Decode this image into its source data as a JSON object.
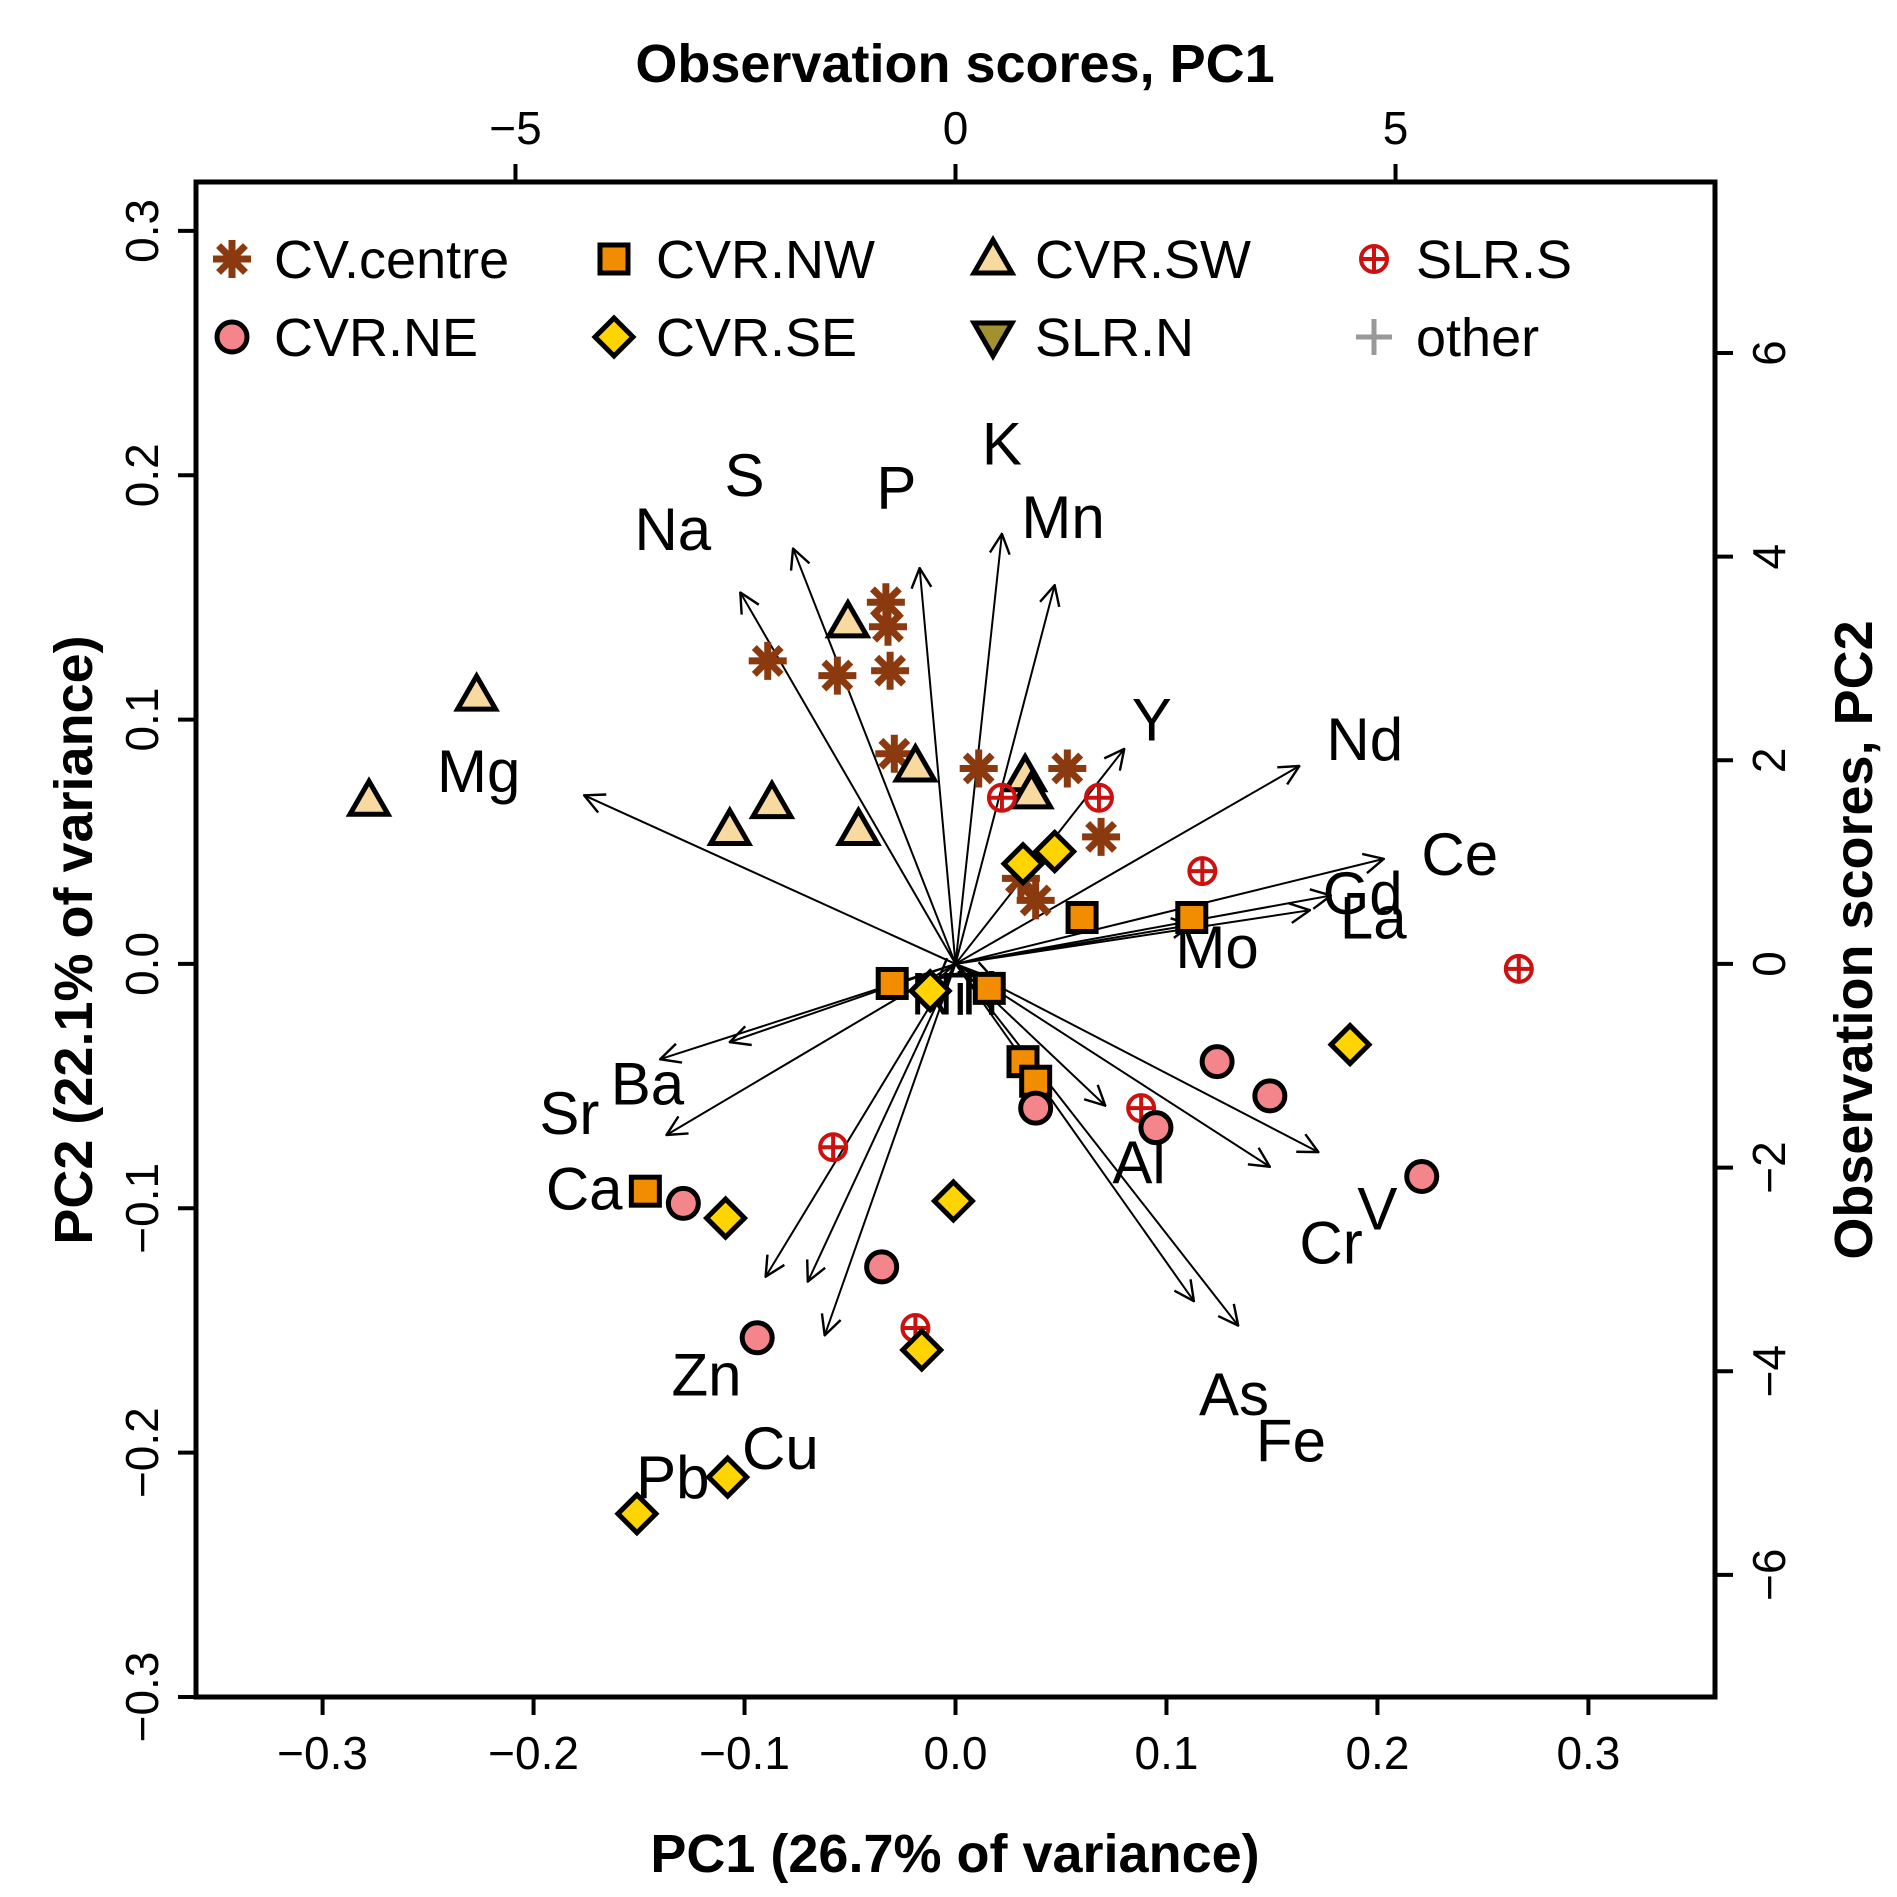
{
  "colors": {
    "cv_centre": "#8B3A0F",
    "cvr_nw": "#F28C00",
    "cvr_sw": "#F8D9A0",
    "slr_s": "#CC1111",
    "cvr_ne": "#F4858A",
    "cvr_se": "#FFD400",
    "slr_n": "#A39130",
    "other": "#999999",
    "axis": "#000000"
  },
  "chart_data": {
    "type": "scatter",
    "subtype": "pca-biplot",
    "titles": {
      "bottom": "PC1 (26.7% of variance)",
      "left": "PC2 (22.1% of variance)",
      "top": "Observation scores, PC1",
      "right": "Observation scores, PC2"
    },
    "axes": {
      "bottom": {
        "lim": [
          -0.36,
          0.36
        ],
        "ticks": [
          -0.3,
          -0.2,
          -0.1,
          0.0,
          0.1,
          0.2,
          0.3
        ],
        "tick_labels": [
          "−0.3",
          "−0.2",
          "−0.1",
          "0.0",
          "0.1",
          "0.2",
          "0.3"
        ]
      },
      "left": {
        "lim": [
          -0.3,
          0.32
        ],
        "ticks": [
          -0.3,
          -0.2,
          -0.1,
          0.0,
          0.1,
          0.2,
          0.3
        ],
        "tick_labels": [
          "−0.3",
          "−0.2",
          "−0.1",
          "0.0",
          "0.1",
          "0.2",
          "0.3"
        ]
      },
      "top": {
        "lim": [
          -8.63,
          8.63
        ],
        "ticks": [
          -5,
          0,
          5
        ],
        "tick_labels": [
          "−5",
          "0",
          "5"
        ]
      },
      "right": {
        "lim": [
          -7.2,
          7.68
        ],
        "ticks": [
          -6,
          -4,
          -2,
          0,
          2,
          4,
          6
        ],
        "tick_labels": [
          "−6",
          "−4",
          "−2",
          "0",
          "2",
          "4",
          "6"
        ]
      }
    },
    "legend": {
      "position": "top-left",
      "entries": [
        {
          "key": "cv_centre",
          "label": "CV.centre",
          "marker": "asterisk"
        },
        {
          "key": "cvr_nw",
          "label": "CVR.NW",
          "marker": "square"
        },
        {
          "key": "cvr_sw",
          "label": "CVR.SW",
          "marker": "triangle-up"
        },
        {
          "key": "slr_s",
          "label": "SLR.S",
          "marker": "circle-plus"
        },
        {
          "key": "cvr_ne",
          "label": "CVR.NE",
          "marker": "circle"
        },
        {
          "key": "cvr_se",
          "label": "CVR.SE",
          "marker": "diamond"
        },
        {
          "key": "slr_n",
          "label": "SLR.N",
          "marker": "triangle-down"
        },
        {
          "key": "other",
          "label": "other",
          "marker": "plus"
        }
      ]
    },
    "loadings": [
      {
        "name": "S",
        "x": -0.077,
        "y": 0.17,
        "label_x": -0.1,
        "label_y": 0.2
      },
      {
        "name": "Na",
        "x": -0.102,
        "y": 0.152,
        "label_x": -0.134,
        "label_y": 0.178
      },
      {
        "name": "P",
        "x": -0.017,
        "y": 0.162,
        "label_x": -0.028,
        "label_y": 0.195
      },
      {
        "name": "K",
        "x": 0.022,
        "y": 0.176,
        "label_x": 0.022,
        "label_y": 0.213
      },
      {
        "name": "Mn",
        "x": 0.047,
        "y": 0.155,
        "label_x": 0.051,
        "label_y": 0.183
      },
      {
        "name": "Y",
        "x": 0.08,
        "y": 0.088,
        "label_x": 0.093,
        "label_y": 0.1
      },
      {
        "name": "Nd",
        "x": 0.163,
        "y": 0.081,
        "label_x": 0.194,
        "label_y": 0.092
      },
      {
        "name": "Ce",
        "x": 0.203,
        "y": 0.043,
        "label_x": 0.239,
        "label_y": 0.045
      },
      {
        "name": "Gd",
        "x": 0.178,
        "y": 0.028,
        "label_x": 0.193,
        "label_y": 0.029
      },
      {
        "name": "La",
        "x": 0.168,
        "y": 0.022,
        "label_x": 0.198,
        "label_y": 0.019
      },
      {
        "name": "Mo",
        "x": 0.112,
        "y": 0.016,
        "label_x": 0.124,
        "label_y": 0.007
      },
      {
        "name": "Mg",
        "x": -0.176,
        "y": 0.069,
        "label_x": -0.226,
        "label_y": 0.079
      },
      {
        "name": "Ba",
        "x": -0.107,
        "y": -0.032,
        "label_x": -0.146,
        "label_y": -0.049
      },
      {
        "name": "Sr",
        "x": -0.14,
        "y": -0.039,
        "label_x": -0.183,
        "label_y": -0.061
      },
      {
        "name": "Ni",
        "x": -0.008,
        "y": -0.006,
        "label_x": -0.008,
        "label_y": -0.012
      },
      {
        "name": "Ti",
        "x": 0.018,
        "y": -0.006,
        "label_x": 0.009,
        "label_y": -0.012
      },
      {
        "name": "Al",
        "x": 0.071,
        "y": -0.058,
        "label_x": 0.087,
        "label_y": -0.081
      },
      {
        "name": "Cr",
        "x": 0.149,
        "y": -0.083,
        "label_x": 0.178,
        "label_y": -0.114
      },
      {
        "name": "V",
        "x": 0.172,
        "y": -0.077,
        "label_x": 0.2,
        "label_y": -0.1
      },
      {
        "name": "As",
        "x": 0.113,
        "y": -0.138,
        "label_x": 0.132,
        "label_y": -0.176
      },
      {
        "name": "Fe",
        "x": 0.134,
        "y": -0.148,
        "label_x": 0.159,
        "label_y": -0.195
      },
      {
        "name": "Ca",
        "x": -0.137,
        "y": -0.07,
        "label_x": -0.176,
        "label_y": -0.092
      },
      {
        "name": "Zn",
        "x": -0.09,
        "y": -0.128,
        "label_x": -0.118,
        "label_y": -0.168
      },
      {
        "name": "Cu",
        "x": -0.062,
        "y": -0.152,
        "label_x": -0.083,
        "label_y": -0.198
      },
      {
        "name": "Pb",
        "x": -0.07,
        "y": -0.13,
        "label_x": -0.134,
        "label_y": -0.21
      }
    ],
    "series": [
      {
        "key": "cv_centre",
        "name": "CV.centre",
        "points": [
          [
            -0.089,
            0.124
          ],
          [
            -0.056,
            0.118
          ],
          [
            -0.033,
            0.148
          ],
          [
            -0.032,
            0.138
          ],
          [
            -0.031,
            0.12
          ],
          [
            -0.029,
            0.086
          ],
          [
            0.011,
            0.08
          ],
          [
            0.053,
            0.08
          ],
          [
            0.069,
            0.052
          ],
          [
            0.031,
            0.035
          ],
          [
            0.038,
            0.026
          ]
        ]
      },
      {
        "key": "cvr_sw",
        "name": "CVR.SW",
        "points": [
          [
            -0.278,
            0.067
          ],
          [
            -0.227,
            0.11
          ],
          [
            -0.107,
            0.055
          ],
          [
            -0.087,
            0.066
          ],
          [
            -0.051,
            0.14
          ],
          [
            -0.046,
            0.055
          ],
          [
            -0.019,
            0.081
          ],
          [
            0.033,
            0.077
          ],
          [
            0.036,
            0.07
          ]
        ]
      },
      {
        "key": "slr_s",
        "name": "SLR.S",
        "points": [
          [
            0.022,
            0.068
          ],
          [
            0.068,
            0.068
          ],
          [
            0.117,
            0.038
          ],
          [
            0.267,
            -0.002
          ],
          [
            0.088,
            -0.059
          ],
          [
            -0.058,
            -0.075
          ],
          [
            -0.019,
            -0.149
          ]
        ]
      },
      {
        "key": "cvr_nw",
        "name": "CVR.NW",
        "points": [
          [
            0.06,
            0.019
          ],
          [
            0.112,
            0.019
          ],
          [
            -0.03,
            -0.008
          ],
          [
            0.016,
            -0.01
          ],
          [
            0.032,
            -0.04
          ],
          [
            0.038,
            -0.048
          ],
          [
            -0.147,
            -0.093
          ]
        ]
      },
      {
        "key": "cvr_se",
        "name": "CVR.SE",
        "points": [
          [
            0.032,
            0.041
          ],
          [
            0.047,
            0.046
          ],
          [
            -0.012,
            -0.011
          ],
          [
            0.187,
            -0.033
          ],
          [
            -0.001,
            -0.097
          ],
          [
            -0.109,
            -0.104
          ],
          [
            -0.016,
            -0.158
          ],
          [
            -0.108,
            -0.21
          ],
          [
            -0.151,
            -0.225
          ]
        ]
      },
      {
        "key": "cvr_ne",
        "name": "CVR.NE",
        "points": [
          [
            0.124,
            -0.04
          ],
          [
            0.149,
            -0.054
          ],
          [
            0.038,
            -0.059
          ],
          [
            0.095,
            -0.067
          ],
          [
            0.221,
            -0.087
          ],
          [
            -0.129,
            -0.098
          ],
          [
            -0.035,
            -0.124
          ],
          [
            -0.094,
            -0.153
          ]
        ]
      },
      {
        "key": "slr_n",
        "name": "SLR.N",
        "points": []
      },
      {
        "key": "other",
        "name": "other",
        "points": []
      }
    ]
  }
}
